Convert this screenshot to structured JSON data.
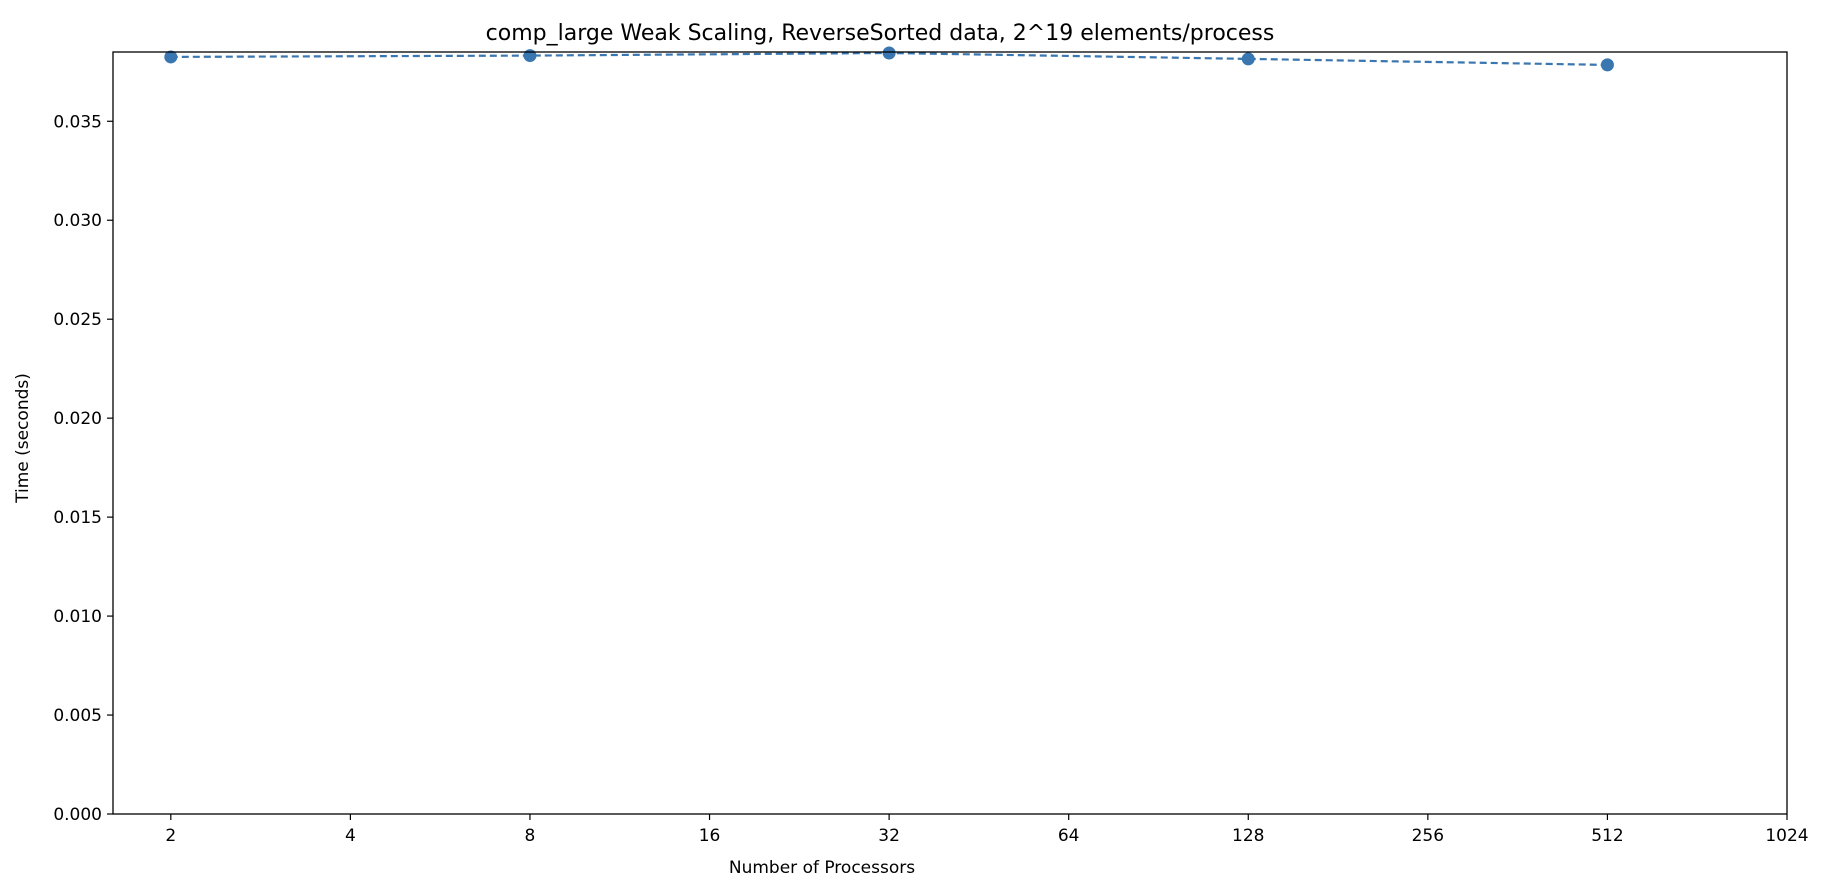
{
  "chart_data": {
    "type": "line",
    "title": "comp_large Weak Scaling, ReverseSorted data, 2^19 elements/process",
    "xlabel": "Number of Processors",
    "ylabel": "Time (seconds)",
    "x_scale": "log2",
    "x_ticks": [
      2,
      4,
      8,
      16,
      32,
      64,
      128,
      256,
      512,
      1024
    ],
    "x_tick_labels": [
      "2",
      "4",
      "8",
      "16",
      "32",
      "64",
      "128",
      "256",
      "512",
      "1024"
    ],
    "y_ticks": [
      0,
      0.005,
      0.01,
      0.015,
      0.02,
      0.025,
      0.03,
      0.035
    ],
    "y_tick_labels": [
      "0.000",
      "0.005",
      "0.010",
      "0.015",
      "0.020",
      "0.025",
      "0.030",
      "0.035"
    ],
    "xlim": [
      1.6,
      1024
    ],
    "ylim": [
      0,
      0.0385
    ],
    "grid": false,
    "line_style": "dashed",
    "marker": "circle",
    "color": "#3a76af",
    "series": [
      {
        "x": [
          2,
          8,
          32,
          128,
          512
        ],
        "y": [
          0.03825,
          0.03832,
          0.03845,
          0.03815,
          0.03785
        ]
      }
    ]
  }
}
